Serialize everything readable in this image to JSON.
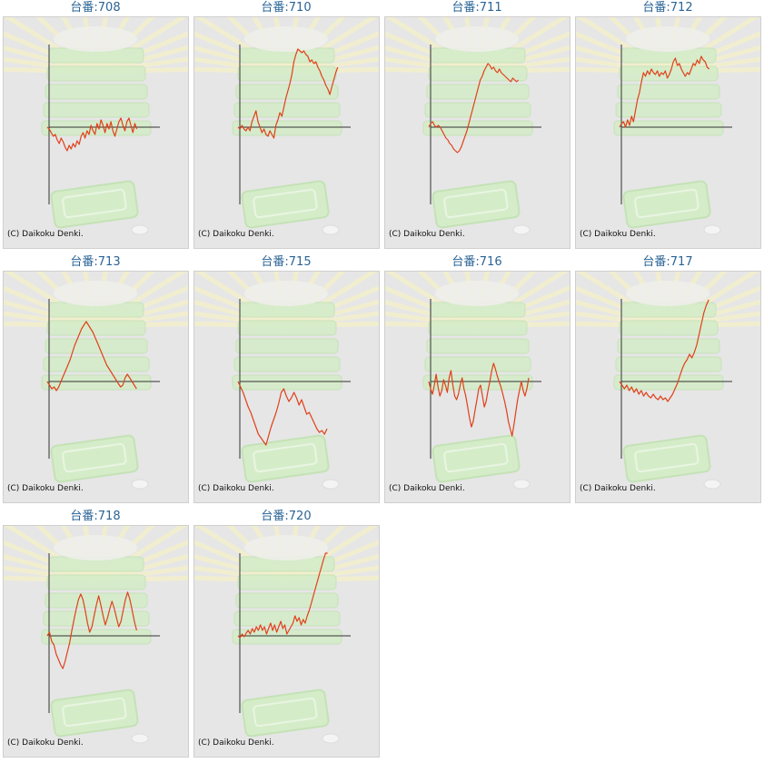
{
  "copyright": "(C) Daikoku Denki.",
  "colors": {
    "line": "#e0401a",
    "axis": "#333333",
    "title": "#2a6496",
    "background": "#e6e6e6"
  },
  "chart_data": [
    {
      "type": "line",
      "title": "台番:708",
      "y": [
        0,
        -2,
        -6,
        -10,
        -8,
        -14,
        -18,
        -12,
        -16,
        -22,
        -26,
        -20,
        -24,
        -18,
        -22,
        -15,
        -19,
        -10,
        -6,
        -12,
        -4,
        -8,
        2,
        -4,
        -8,
        4,
        -2,
        8,
        2,
        -6,
        4,
        -2,
        6,
        -4,
        -10,
        -2,
        6,
        10,
        2,
        -4,
        6,
        10,
        2,
        -6,
        4,
        -2
      ]
    },
    {
      "type": "line",
      "title": "台番:710",
      "y": [
        0,
        -2,
        2,
        -2,
        -4,
        0,
        -4,
        6,
        12,
        18,
        6,
        0,
        -6,
        -2,
        -8,
        -10,
        -4,
        -8,
        -12,
        2,
        8,
        16,
        12,
        22,
        32,
        40,
        48,
        58,
        72,
        80,
        86,
        84,
        82,
        84,
        80,
        78,
        72,
        74,
        70,
        72,
        66,
        62,
        56,
        52,
        46,
        42,
        36,
        44,
        52,
        60,
        66
      ]
    },
    {
      "type": "line",
      "title": "台番:711",
      "y": [
        0,
        4,
        6,
        2,
        0,
        2,
        0,
        -4,
        -8,
        -12,
        -14,
        -18,
        -20,
        -24,
        -26,
        -28,
        -26,
        -22,
        -16,
        -10,
        -4,
        4,
        12,
        20,
        28,
        36,
        44,
        52,
        56,
        62,
        66,
        70,
        68,
        64,
        66,
        62,
        60,
        64,
        60,
        58,
        56,
        54,
        52,
        50,
        54,
        52,
        50,
        52
      ]
    },
    {
      "type": "line",
      "title": "台番:712",
      "y": [
        0,
        4,
        6,
        0,
        8,
        2,
        12,
        6,
        18,
        30,
        38,
        50,
        60,
        56,
        62,
        58,
        64,
        60,
        58,
        62,
        56,
        60,
        58,
        62,
        54,
        58,
        64,
        72,
        76,
        68,
        70,
        64,
        60,
        56,
        60,
        58,
        64,
        70,
        68,
        74,
        70,
        78,
        74,
        72,
        66,
        64
      ]
    },
    {
      "type": "line",
      "title": "台番:713",
      "y": [
        0,
        -4,
        -8,
        -6,
        -10,
        -6,
        0,
        6,
        12,
        18,
        24,
        32,
        40,
        46,
        52,
        58,
        62,
        66,
        62,
        58,
        54,
        48,
        42,
        36,
        30,
        24,
        18,
        14,
        10,
        6,
        2,
        -2,
        -6,
        -4,
        4,
        8,
        4,
        0,
        -4,
        -8
      ]
    },
    {
      "type": "line",
      "title": "台番:715",
      "y": [
        0,
        -6,
        -12,
        -20,
        -28,
        -34,
        -42,
        -50,
        -58,
        -62,
        -66,
        -70,
        -60,
        -50,
        -42,
        -34,
        -24,
        -12,
        -8,
        -16,
        -22,
        -18,
        -12,
        -18,
        -26,
        -20,
        -28,
        -36,
        -34,
        -40,
        -46,
        -52,
        -56,
        -54,
        -58,
        -52
      ]
    },
    {
      "type": "line",
      "title": "台番:716",
      "y": [
        0,
        -8,
        -14,
        -4,
        8,
        -6,
        -16,
        -10,
        2,
        -4,
        -12,
        4,
        12,
        -4,
        -16,
        -20,
        -14,
        -4,
        4,
        -8,
        -16,
        -28,
        -40,
        -50,
        -44,
        -32,
        -20,
        -8,
        -4,
        -16,
        -28,
        -22,
        -10,
        0,
        12,
        20,
        14,
        6,
        0,
        -6,
        -14,
        -22,
        -32,
        -44,
        -52,
        -60,
        -48,
        -34,
        -20,
        -10,
        0,
        -10,
        -16,
        -8,
        4
      ]
    },
    {
      "type": "line",
      "title": "台番:717",
      "y": [
        0,
        -4,
        -8,
        -4,
        -10,
        -6,
        -12,
        -8,
        -14,
        -10,
        -16,
        -12,
        -16,
        -18,
        -14,
        -18,
        -20,
        -16,
        -20,
        -18,
        -22,
        -18,
        -14,
        -8,
        -2,
        6,
        14,
        20,
        24,
        30,
        26,
        32,
        40,
        52,
        64,
        76,
        84,
        90
      ]
    },
    {
      "type": "line",
      "title": "台番:718",
      "y": [
        0,
        4,
        -6,
        -10,
        -20,
        -26,
        -32,
        -36,
        -28,
        -18,
        -8,
        6,
        18,
        30,
        40,
        46,
        40,
        28,
        14,
        4,
        10,
        22,
        34,
        44,
        34,
        22,
        12,
        20,
        30,
        38,
        30,
        20,
        10,
        16,
        28,
        40,
        48,
        40,
        28,
        16,
        6
      ]
    },
    {
      "type": "line",
      "title": "台番:720",
      "y": [
        0,
        -2,
        2,
        -1,
        3,
        6,
        2,
        8,
        4,
        10,
        6,
        12,
        6,
        10,
        2,
        8,
        14,
        6,
        12,
        4,
        10,
        16,
        8,
        12,
        2,
        6,
        10,
        14,
        22,
        16,
        20,
        12,
        18,
        14,
        22,
        28,
        36,
        44,
        52,
        60,
        68,
        76,
        84,
        92,
        100
      ]
    }
  ]
}
